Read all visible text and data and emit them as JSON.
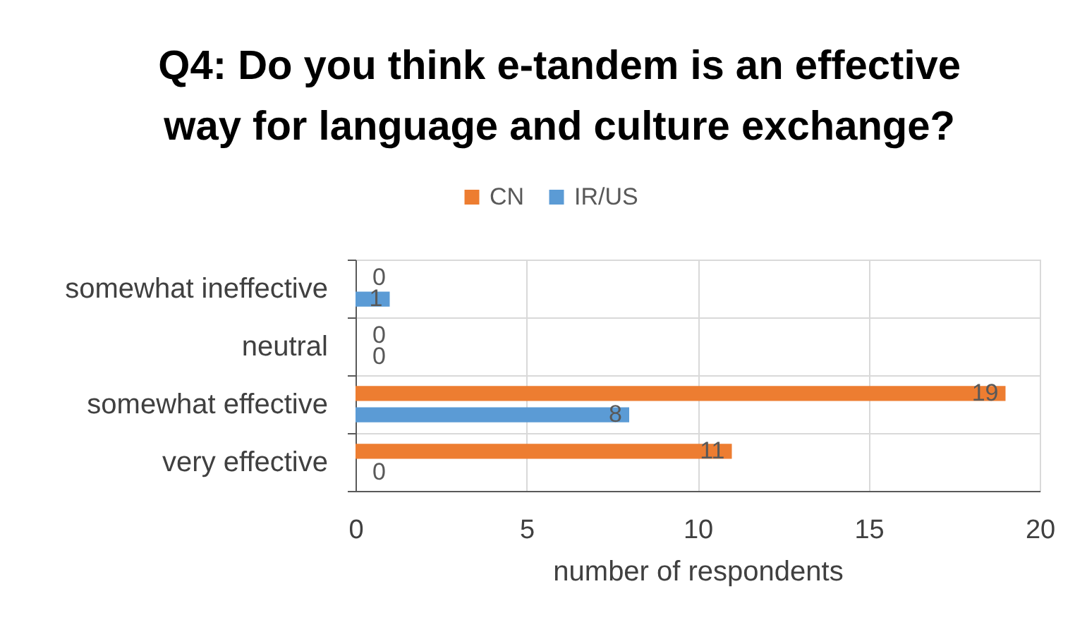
{
  "chart_data": {
    "type": "bar",
    "orientation": "horizontal",
    "title": "Q4: Do you think e-tandem is an effective way for language and culture exchange?",
    "categories": [
      "somewhat ineffective",
      "neutral",
      "somewhat effective",
      "very effective"
    ],
    "series": [
      {
        "name": "CN",
        "color": "#ed7d31",
        "values": [
          0,
          0,
          19,
          11
        ]
      },
      {
        "name": "IR/US",
        "color": "#5b9bd5",
        "values": [
          1,
          0,
          8,
          0
        ]
      }
    ],
    "xlabel": "number of respondents",
    "xlim": [
      0,
      20
    ],
    "xticks": [
      0,
      5,
      10,
      15,
      20
    ],
    "grid": true,
    "legend": "top",
    "data_labels": true
  }
}
